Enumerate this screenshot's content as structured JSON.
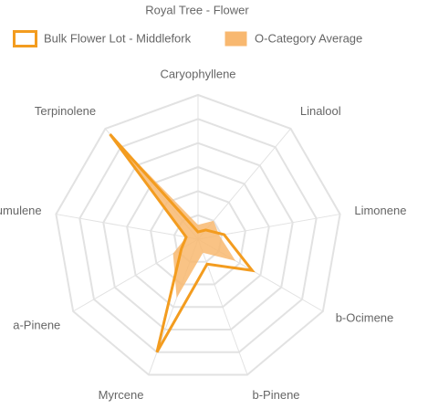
{
  "chart_data": {
    "type": "radar",
    "title": "Royal Tree - Flower",
    "categories": [
      "Caryophyllene",
      "Linalool",
      "Limonene",
      "b-Ocimene",
      "b-Pinene",
      "Myrcene",
      "a-Pinene",
      "Humulene",
      "Terpinolene"
    ],
    "series": [
      {
        "name": "Bulk Flower Lot - Middlefork",
        "color": "#f39c1f",
        "fill": false,
        "values": [
          3,
          5,
          11,
          26,
          11,
          50,
          8,
          5,
          57
        ]
      },
      {
        "name": "O-Category Average",
        "color": "#f8b870",
        "fill": true,
        "values": [
          6,
          10,
          9,
          18,
          6,
          26,
          12,
          5,
          56
        ]
      }
    ],
    "rlim": [
      0,
      60
    ],
    "rticks": [
      10,
      20,
      30,
      40,
      50,
      60
    ],
    "grid": true
  }
}
